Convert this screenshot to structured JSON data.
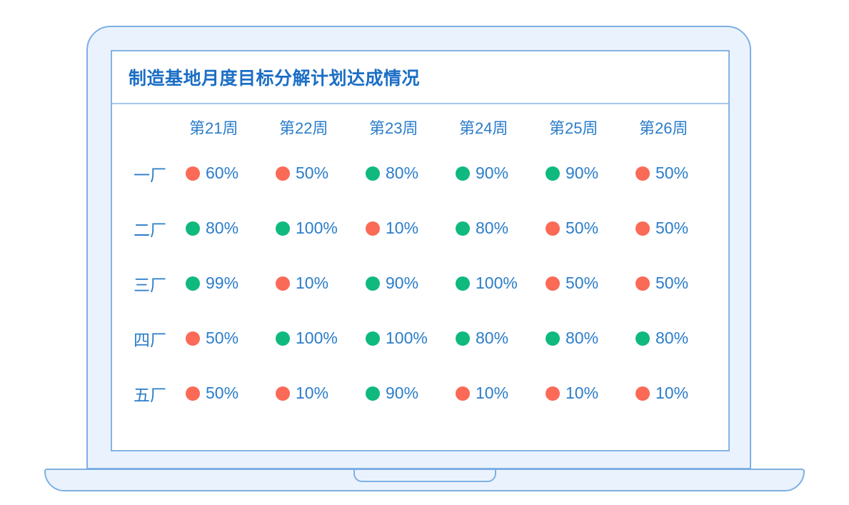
{
  "chart_data": {
    "type": "table",
    "title": "制造基地月度目标分解计划达成情况",
    "columns": [
      "第21周",
      "第22周",
      "第23周",
      "第24周",
      "第25周",
      "第26周"
    ],
    "rows": [
      {
        "label": "一厂",
        "cells": [
          {
            "value": "60%",
            "status": "red"
          },
          {
            "value": "50%",
            "status": "red"
          },
          {
            "value": "80%",
            "status": "green"
          },
          {
            "value": "90%",
            "status": "green"
          },
          {
            "value": "90%",
            "status": "green"
          },
          {
            "value": "50%",
            "status": "red"
          }
        ]
      },
      {
        "label": "二厂",
        "cells": [
          {
            "value": "80%",
            "status": "green"
          },
          {
            "value": "100%",
            "status": "green"
          },
          {
            "value": "10%",
            "status": "red"
          },
          {
            "value": "80%",
            "status": "green"
          },
          {
            "value": "50%",
            "status": "red"
          },
          {
            "value": "50%",
            "status": "red"
          }
        ]
      },
      {
        "label": "三厂",
        "cells": [
          {
            "value": "99%",
            "status": "green"
          },
          {
            "value": "10%",
            "status": "red"
          },
          {
            "value": "90%",
            "status": "green"
          },
          {
            "value": "100%",
            "status": "green"
          },
          {
            "value": "50%",
            "status": "red"
          },
          {
            "value": "50%",
            "status": "red"
          }
        ]
      },
      {
        "label": "四厂",
        "cells": [
          {
            "value": "50%",
            "status": "red"
          },
          {
            "value": "100%",
            "status": "green"
          },
          {
            "value": "100%",
            "status": "green"
          },
          {
            "value": "80%",
            "status": "green"
          },
          {
            "value": "80%",
            "status": "green"
          },
          {
            "value": "80%",
            "status": "green"
          }
        ]
      },
      {
        "label": "五厂",
        "cells": [
          {
            "value": "50%",
            "status": "red"
          },
          {
            "value": "10%",
            "status": "red"
          },
          {
            "value": "90%",
            "status": "green"
          },
          {
            "value": "10%",
            "status": "red"
          },
          {
            "value": "10%",
            "status": "red"
          },
          {
            "value": "10%",
            "status": "red"
          }
        ]
      }
    ],
    "status_colors": {
      "red": "#fa6a57",
      "green": "#10b97e"
    }
  },
  "colors": {
    "text_blue": "#2b7dca",
    "title_blue": "#1b6ec5",
    "frame_fill": "#eaf3fd",
    "frame_border": "#7eafe4",
    "divider": "#a6c8ef"
  }
}
